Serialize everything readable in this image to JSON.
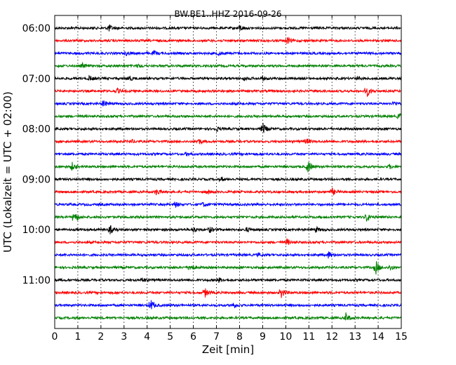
{
  "chart_data": {
    "type": "line",
    "title": "BW.BE1..HHZ 2016-09-26",
    "xlabel": "Zeit  [min]",
    "ylabel": "UTC (Lokalzeit = UTC + 02:00)",
    "xlim": [
      0,
      15
    ],
    "x_ticks": [
      "0",
      "1",
      "2",
      "3",
      "4",
      "5",
      "6",
      "7",
      "8",
      "9",
      "10",
      "11",
      "12",
      "13",
      "14",
      "15"
    ],
    "y_tick_labels": [
      "06:00",
      "07:00",
      "08:00",
      "09:00",
      "10:00",
      "11:00"
    ],
    "grid": "vertical dotted lines at each minute",
    "trace_colors": [
      "#000000",
      "#ff0000",
      "#0000ff",
      "#008000"
    ],
    "traces_start": "06:00",
    "trace_length_min": 15,
    "trace_count": 24,
    "events": [
      [
        [
          2.35,
          0.9
        ],
        [
          8.0,
          0.9
        ]
      ],
      [
        [
          10.05,
          1.0
        ]
      ],
      [
        [
          3.1,
          0.5
        ],
        [
          4.3,
          0.6
        ],
        [
          7.1,
          0.5
        ]
      ],
      [
        [
          1.2,
          0.6
        ],
        [
          3.6,
          0.5
        ]
      ],
      [
        [
          1.5,
          0.7
        ],
        [
          3.2,
          0.8
        ],
        [
          8.2,
          0.5
        ],
        [
          9.0,
          0.5
        ],
        [
          13.1,
          0.5
        ]
      ],
      [
        [
          2.7,
          0.6
        ],
        [
          13.5,
          1.5
        ]
      ],
      [
        [
          2.1,
          1.0
        ],
        [
          14.7,
          0.6
        ]
      ],
      [
        [
          14.9,
          1.0
        ]
      ],
      [
        [
          7.0,
          0.5
        ],
        [
          9.0,
          1.6
        ]
      ],
      [
        [
          3.3,
          0.5
        ],
        [
          6.2,
          0.9
        ],
        [
          10.9,
          0.7
        ]
      ],
      [
        [
          5.7,
          0.6
        ]
      ],
      [
        [
          0.75,
          1.1
        ],
        [
          10.95,
          1.8
        ],
        [
          14.5,
          0.5
        ]
      ],
      [
        [
          7.2,
          0.5
        ]
      ],
      [
        [
          4.4,
          1.0
        ],
        [
          6.6,
          0.6
        ],
        [
          12.0,
          0.9
        ]
      ],
      [
        [
          5.2,
          0.8
        ],
        [
          6.4,
          0.6
        ]
      ],
      [
        [
          0.85,
          1.8
        ],
        [
          13.5,
          1.3
        ]
      ],
      [
        [
          2.4,
          1.1
        ],
        [
          6.0,
          0.8
        ],
        [
          6.7,
          0.8
        ],
        [
          8.3,
          0.6
        ],
        [
          11.3,
          0.7
        ]
      ],
      [
        [
          10.05,
          0.9
        ]
      ],
      [
        [
          8.8,
          0.5
        ],
        [
          11.85,
          0.9
        ]
      ],
      [
        [
          5.85,
          1.1
        ],
        [
          13.9,
          1.9
        ],
        [
          14.5,
          0.8
        ]
      ],
      [
        [
          3.8,
          0.6
        ],
        [
          7.1,
          0.6
        ]
      ],
      [
        [
          6.5,
          1.2
        ],
        [
          9.8,
          1.5
        ]
      ],
      [
        [
          4.15,
          1.6
        ],
        [
          7.7,
          0.8
        ]
      ],
      [
        [
          12.6,
          1.2
        ]
      ]
    ]
  }
}
